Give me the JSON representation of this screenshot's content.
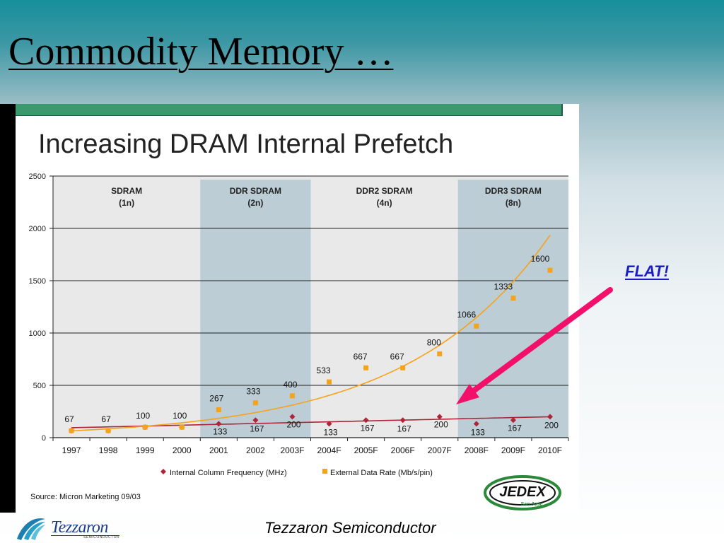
{
  "slide": {
    "title": "Commodity Memory …",
    "annotation": "FLAT!",
    "footer": "Tezzaron Semiconductor",
    "logo_text": "Tezzaron",
    "logo_subtext": "SEMICONDUCTOR"
  },
  "chart_data": {
    "type": "line",
    "title": "Increasing DRAM Internal Prefetch",
    "source": "Source: Micron Marketing 09/03",
    "badge": {
      "main": "JEDEX",
      "sub": "San Jose"
    },
    "ylim": [
      0,
      2500
    ],
    "yticks": [
      "0",
      "500",
      "1000",
      "1500",
      "2000",
      "2500"
    ],
    "grid": true,
    "legend_position": "bottom",
    "categories": [
      "1997",
      "1998",
      "1999",
      "2000",
      "2001",
      "2002",
      "2003F",
      "2004F",
      "2005F",
      "2006F",
      "2007F",
      "2008F",
      "2009F",
      "2010F"
    ],
    "bands": [
      {
        "name": "SDRAM",
        "detail": "(1n)",
        "from": 0,
        "to": 3,
        "shaded": false
      },
      {
        "name": "DDR SDRAM",
        "detail": "(2n)",
        "from": 4,
        "to": 6,
        "shaded": true
      },
      {
        "name": "DDR2 SDRAM",
        "detail": "(4n)",
        "from": 7,
        "to": 10,
        "shaded": false
      },
      {
        "name": "DDR3 SDRAM",
        "detail": "(8n)",
        "from": 11,
        "to": 13,
        "shaded": true
      }
    ],
    "series": [
      {
        "name": "Internal Column Frequency (MHz)",
        "color": "#b02437",
        "marker": "diamond",
        "values": [
          67,
          67,
          100,
          100,
          133,
          167,
          200,
          133,
          167,
          167,
          200,
          133,
          167,
          200
        ],
        "labels": [
          "",
          "",
          "",
          "",
          "133",
          "167",
          "200",
          "133",
          "167",
          "167",
          "200",
          "133",
          "167",
          "200"
        ],
        "trend": [
          95,
          200
        ]
      },
      {
        "name": "External Data Rate (Mb/s/pin)",
        "color": "#f5a31a",
        "marker": "square",
        "values": [
          67,
          67,
          100,
          100,
          267,
          333,
          400,
          533,
          667,
          667,
          800,
          1066,
          1333,
          1600
        ],
        "labels": [
          "67",
          "67",
          "100",
          "100",
          "267",
          "333",
          "400",
          "533",
          "667",
          "667",
          "800",
          "1066",
          "1333",
          "1600"
        ],
        "trend": [
          65,
          1935
        ]
      }
    ]
  }
}
